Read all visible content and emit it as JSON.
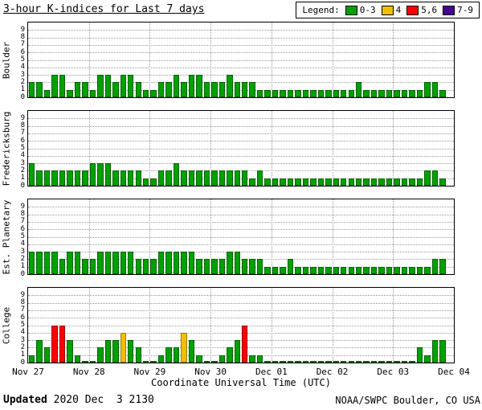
{
  "title": "3-hour K-indices for Last 7 days",
  "legend": {
    "label": "Legend:",
    "items": [
      {
        "label": "0-3",
        "color": "#00a000"
      },
      {
        "label": "4",
        "color": "#f0c000"
      },
      {
        "label": "5,6",
        "color": "#ff0000"
      },
      {
        "label": "7-9",
        "color": "#470091"
      }
    ]
  },
  "footer": {
    "updated_label": "Updated",
    "updated_value": " 2020 Dec  3 2130",
    "credit": "NOAA/SWPC Boulder, CO USA"
  },
  "chart_data": {
    "type": "bar",
    "title": "3-hour K-indices for Last 7 days",
    "xlabel": "Coordinate Universal Time (UTC)",
    "ylim": [
      0,
      9
    ],
    "yticks": [
      0,
      1,
      2,
      3,
      4,
      5,
      6,
      7,
      8,
      9
    ],
    "x_tick_labels": [
      "Nov 27",
      "Nov 28",
      "Nov 29",
      "Nov 30",
      "Dec 01",
      "Dec 02",
      "Dec 03",
      "Dec 04"
    ],
    "hours_per_bar": 3,
    "bars_per_day": 8,
    "grid": true,
    "color_bins": [
      {
        "label": "0-3",
        "range": [
          0,
          3
        ],
        "color": "#00a000"
      },
      {
        "label": "4",
        "range": [
          4,
          4
        ],
        "color": "#f0c000"
      },
      {
        "label": "5,6",
        "range": [
          5,
          6
        ],
        "color": "#ff0000"
      },
      {
        "label": "7-9",
        "range": [
          7,
          9
        ],
        "color": "#470091"
      }
    ],
    "series": [
      {
        "name": "Boulder",
        "values": [
          2,
          2,
          1,
          3,
          3,
          1,
          2,
          2,
          1,
          3,
          3,
          2,
          3,
          3,
          2,
          1,
          1,
          2,
          2,
          3,
          2,
          3,
          3,
          2,
          2,
          2,
          3,
          2,
          2,
          2,
          1,
          1,
          1,
          1,
          1,
          1,
          1,
          1,
          1,
          1,
          1,
          1,
          1,
          2,
          1,
          1,
          1,
          1,
          1,
          1,
          1,
          1,
          2,
          2,
          1
        ]
      },
      {
        "name": "Fredericksburg",
        "values": [
          3,
          2,
          2,
          2,
          2,
          2,
          2,
          2,
          3,
          3,
          3,
          2,
          2,
          2,
          2,
          1,
          1,
          2,
          2,
          3,
          2,
          2,
          2,
          2,
          2,
          2,
          2,
          2,
          2,
          1,
          2,
          1,
          1,
          1,
          1,
          1,
          1,
          1,
          1,
          1,
          1,
          1,
          1,
          1,
          1,
          1,
          1,
          1,
          1,
          1,
          1,
          1,
          2,
          2,
          1
        ]
      },
      {
        "name": "Est. Planetary",
        "values": [
          3,
          3,
          3,
          3,
          2,
          3,
          3,
          2,
          2,
          3,
          3,
          3,
          3,
          3,
          2,
          2,
          2,
          3,
          3,
          3,
          3,
          3,
          2,
          2,
          2,
          2,
          3,
          3,
          2,
          2,
          2,
          1,
          1,
          1,
          2,
          1,
          1,
          1,
          1,
          1,
          1,
          1,
          1,
          1,
          1,
          1,
          1,
          1,
          1,
          1,
          1,
          1,
          1,
          2,
          2
        ]
      },
      {
        "name": "College",
        "values": [
          1,
          3,
          2,
          5,
          5,
          3,
          1,
          0,
          0,
          2,
          3,
          3,
          4,
          3,
          2,
          0,
          0,
          1,
          2,
          2,
          4,
          3,
          1,
          0,
          0,
          1,
          2,
          3,
          5,
          1,
          1,
          0,
          0,
          0,
          0,
          0,
          0,
          0,
          0,
          0,
          0,
          0,
          0,
          0,
          0,
          0,
          0,
          0,
          0,
          0,
          0,
          2,
          1,
          3,
          3
        ]
      }
    ]
  }
}
